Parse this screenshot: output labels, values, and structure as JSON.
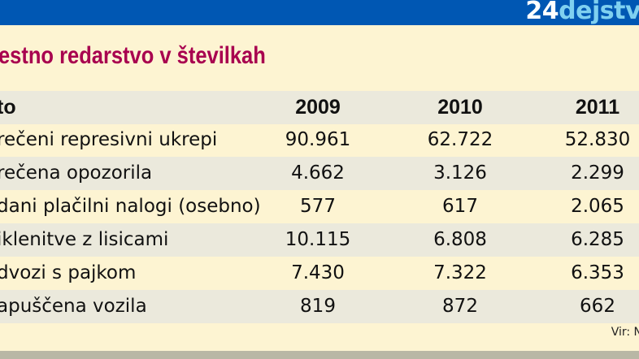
{
  "logo": {
    "number": "24",
    "word": "dejstv"
  },
  "colors": {
    "topbar": "#0057b3",
    "title": "#a8004f",
    "background": "#fdf4d2",
    "stripe": "#ebe9dc"
  },
  "chart_data": {
    "type": "table",
    "title": "estno redarstvo v številkah",
    "columns": [
      "to",
      "2009",
      "2010",
      "2011"
    ],
    "rows": [
      {
        "label": "rečeni represivni ukrepi",
        "values": [
          "90.961",
          "62.722",
          "52.830"
        ]
      },
      {
        "label": "rečena opozorila",
        "values": [
          "4.662",
          "3.126",
          "2.299"
        ]
      },
      {
        "label": "dani plačilni nalogi (osebno)",
        "values": [
          "577",
          "617",
          "2.065"
        ]
      },
      {
        "label": "iklenitve z lisicami",
        "values": [
          "10.115",
          "6.808",
          "6.285"
        ]
      },
      {
        "label": "dvozi s pajkom",
        "values": [
          "7.430",
          "7.322",
          "6.353"
        ]
      },
      {
        "label": "apuščena vozila",
        "values": [
          "819",
          "872",
          "662"
        ]
      }
    ],
    "source": "Vir: N"
  }
}
